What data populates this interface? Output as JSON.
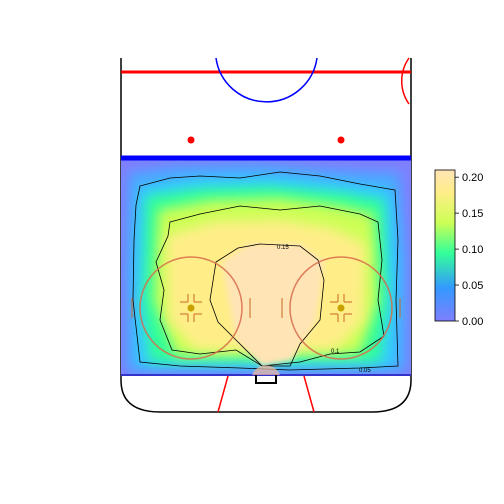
{
  "chart_data": {
    "type": "heatmap",
    "subject": "hockey rink offensive-zone shot density",
    "colorbar": {
      "ticks": [
        0.0,
        0.05,
        0.1,
        0.15,
        0.2
      ],
      "tick_labels": [
        "0.00",
        "0.05",
        "0.10",
        "0.15",
        "0.20"
      ],
      "range": [
        0.0,
        0.21
      ],
      "colors": [
        "#7f7fff",
        "#3399ff",
        "#33ff99",
        "#ccff55",
        "#ffee88",
        "#ffe4b5"
      ],
      "placement": "right"
    },
    "contours": [
      {
        "level": 0.05,
        "label": "0.05"
      },
      {
        "level": 0.1,
        "label": "0.1"
      },
      {
        "level": 0.15,
        "label": "0.15"
      }
    ],
    "density_peaks": [
      {
        "name": "slot",
        "value": 0.2
      },
      {
        "name": "left circle",
        "value": 0.16
      },
      {
        "name": "right circle",
        "value": 0.16
      }
    ],
    "grid": false,
    "rink_colors": {
      "goal_line": "#ff0000",
      "blue_line": "#0000ff",
      "boards": "#000000",
      "faceoff_dot": "#ff0000"
    }
  }
}
